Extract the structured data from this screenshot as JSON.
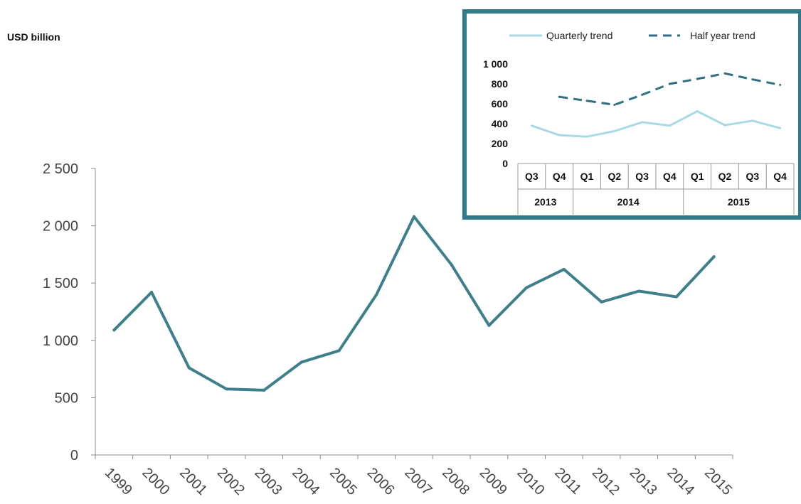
{
  "unit_label": "USD billion",
  "colors": {
    "main_line": "#3e7f8c",
    "inset_border": "#2f7b8c",
    "quarterly": "#a9d9e4",
    "half_year": "#2f6f80",
    "axis": "#8c8c8c"
  },
  "chart_data": [
    {
      "type": "line",
      "title": "",
      "ylabel": "USD billion",
      "xlabel": "",
      "categories": [
        "1999",
        "2000",
        "2001",
        "2002",
        "2003",
        "2004",
        "2005",
        "2006",
        "2007",
        "2008",
        "2009",
        "2010",
        "2011",
        "2012",
        "2013",
        "2014",
        "2015"
      ],
      "series": [
        {
          "values": [
            1090,
            1420,
            760,
            575,
            565,
            810,
            910,
            1400,
            2080,
            1660,
            1130,
            1460,
            1620,
            1335,
            1430,
            1380,
            1730
          ]
        }
      ],
      "ylim": [
        0,
        2500
      ],
      "yticks": [
        0,
        500,
        1000,
        1500,
        2000,
        2500
      ],
      "ytick_labels": [
        "0",
        "500",
        "1 000",
        "1 500",
        "2 000",
        "2 500"
      ],
      "grid": false
    },
    {
      "type": "line",
      "title": "",
      "categories": [
        "Q3",
        "Q4",
        "Q1",
        "Q2",
        "Q3",
        "Q4",
        "Q1",
        "Q2",
        "Q3",
        "Q4"
      ],
      "year_groups": [
        {
          "label": "2013",
          "span": 2
        },
        {
          "label": "2014",
          "span": 4
        },
        {
          "label": "2015",
          "span": 4
        }
      ],
      "series": [
        {
          "name": "Quarterly trend",
          "style": "solid",
          "values": [
            380,
            285,
            270,
            325,
            415,
            380,
            525,
            385,
            430,
            355
          ]
        },
        {
          "name": "Half year trend",
          "style": "dashed",
          "values": [
            null,
            670,
            630,
            590,
            690,
            800,
            850,
            905,
            845,
            790
          ]
        }
      ],
      "ylim": [
        0,
        1000
      ],
      "yticks": [
        0,
        200,
        400,
        600,
        800,
        1000
      ],
      "ytick_labels": [
        "0",
        "200",
        "400",
        "600",
        "800",
        "1 000"
      ],
      "legend_position": "top",
      "grid": false
    }
  ]
}
